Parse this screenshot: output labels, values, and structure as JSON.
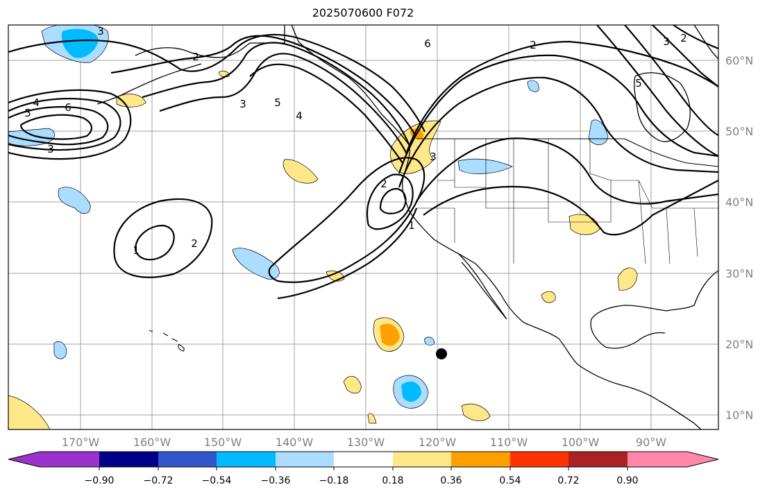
{
  "title": "2025070600 F072",
  "longitude_labels": [
    "170°W",
    "160°W",
    "150°W",
    "140°W",
    "130°W",
    "120°W",
    "110°W",
    "100°W",
    "90°W"
  ],
  "latitude_labels": [
    "60°N",
    "50°N",
    "40°N",
    "30°N",
    "20°N",
    "10°N"
  ],
  "contour_labels": [
    "3",
    "2",
    "4",
    "5",
    "6",
    "3",
    "4",
    "5",
    "3",
    "6",
    "2",
    "3",
    "2",
    "1",
    "2",
    "1",
    "3",
    "2",
    "5"
  ],
  "colorbar": {
    "colors": [
      "#9933cc",
      "#000088",
      "#3355cc",
      "#00bbff",
      "#aaddff",
      "#ffffff",
      "#ffe888",
      "#ffa000",
      "#ff3300",
      "#aa2222",
      "#ff88aa"
    ],
    "tick_labels": [
      "−0.90",
      "−0.72",
      "−0.54",
      "−0.36",
      "−0.18",
      "0.18",
      "0.36",
      "0.54",
      "0.72",
      "0.90"
    ]
  }
}
